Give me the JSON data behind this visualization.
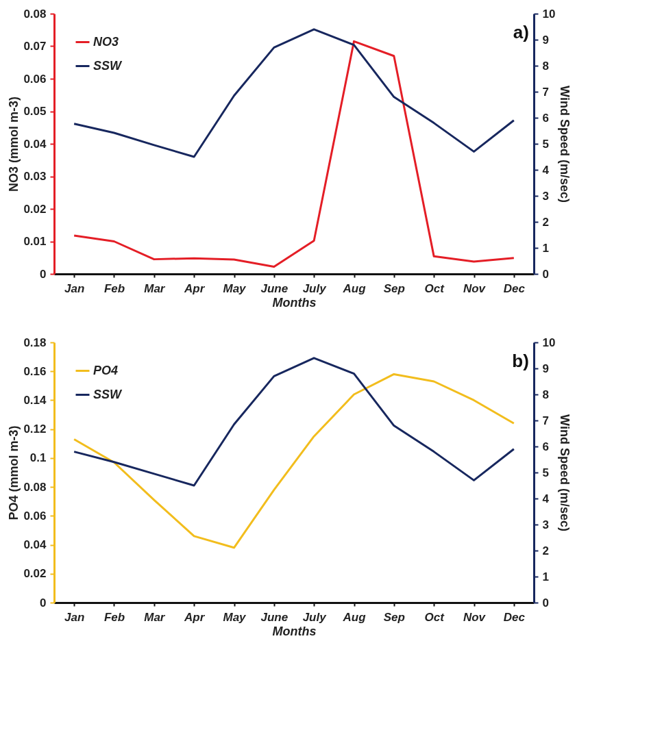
{
  "chart_data": [
    {
      "type": "line",
      "categories": [
        "Jan",
        "Feb",
        "Mar",
        "Apr",
        "May",
        "June",
        "July",
        "Aug",
        "Sep",
        "Oct",
        "Nov",
        "Dec"
      ],
      "xlabel": "Months",
      "ylabel": "NO3 (mmol m-3)",
      "y2label": "Wind Speed (m/sec)",
      "ylim": [
        0,
        0.08
      ],
      "yticks": [
        0,
        0.01,
        0.02,
        0.03,
        0.04,
        0.05,
        0.06,
        0.07,
        0.08
      ],
      "y2lim": [
        0,
        10
      ],
      "y2ticks": [
        0,
        1,
        2,
        3,
        4,
        5,
        6,
        7,
        8,
        9,
        10
      ],
      "grid": false,
      "legend": "top left",
      "annotations": [
        "a)"
      ],
      "series": [
        {
          "name": "NO3",
          "color": "#e41e26",
          "values": [
            0.0118,
            0.01,
            0.0045,
            0.0048,
            0.0044,
            0.0022,
            0.0102,
            0.0715,
            0.067,
            0.0054,
            0.0038,
            0.0049
          ]
        },
        {
          "name": "SSW",
          "color": "#17275e",
          "axis": "y2",
          "values": [
            5.77,
            5.42,
            4.95,
            4.5,
            6.85,
            8.7,
            9.4,
            8.8,
            6.8,
            5.8,
            4.7,
            5.9
          ]
        }
      ]
    },
    {
      "type": "line",
      "categories": [
        "Jan",
        "Feb",
        "Mar",
        "Apr",
        "May",
        "June",
        "July",
        "Aug",
        "Sep",
        "Oct",
        "Nov",
        "Dec"
      ],
      "xlabel": "Months",
      "ylabel": "PO4 (mmol m-3)",
      "y2label": "Wind Speed (m/sec)",
      "ylim": [
        0,
        0.18
      ],
      "yticks": [
        0,
        0.02,
        0.04,
        0.06,
        0.08,
        0.1,
        0.12,
        0.14,
        0.16,
        0.18
      ],
      "y2lim": [
        0,
        10
      ],
      "y2ticks": [
        0,
        1,
        2,
        3,
        4,
        5,
        6,
        7,
        8,
        9,
        10
      ],
      "grid": false,
      "legend": "top left",
      "annotations": [
        "b)"
      ],
      "series": [
        {
          "name": "PO4",
          "color": "#f2bd1d",
          "values": [
            0.113,
            0.097,
            0.071,
            0.046,
            0.038,
            0.078,
            0.115,
            0.144,
            0.158,
            0.153,
            0.14,
            0.124
          ]
        },
        {
          "name": "SSW",
          "color": "#17275e",
          "axis": "y2",
          "values": [
            5.8,
            5.4,
            4.95,
            4.5,
            6.85,
            8.7,
            9.4,
            8.8,
            6.8,
            5.8,
            4.7,
            5.9
          ]
        }
      ]
    }
  ]
}
